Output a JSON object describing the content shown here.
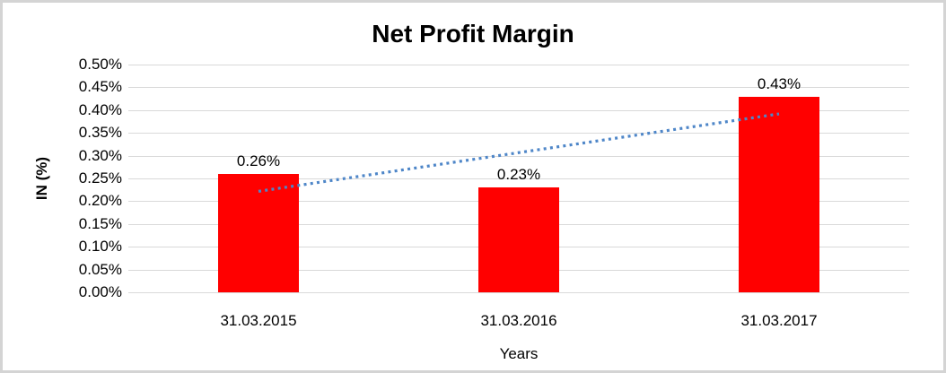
{
  "chart_data": {
    "type": "bar",
    "title": "Net Profit Margin",
    "xlabel": "Years",
    "ylabel": "IN (%)",
    "categories": [
      "31.03.2015",
      "31.03.2016",
      "31.03.2017"
    ],
    "values": [
      0.26,
      0.23,
      0.43
    ],
    "data_labels": [
      "0.26%",
      "0.23%",
      "0.43%"
    ],
    "y_tick_labels": [
      "0.00%",
      "0.05%",
      "0.10%",
      "0.15%",
      "0.20%",
      "0.25%",
      "0.30%",
      "0.35%",
      "0.40%",
      "0.45%",
      "0.50%"
    ],
    "ylim": [
      0,
      0.5
    ],
    "y_tick_step": 0.05,
    "grid": true,
    "legend": "none",
    "bar_color": "#ff0000",
    "gridline_color": "#d9d9d9",
    "frame_color": "#d4d4d4",
    "text_color": "#000000",
    "trendline": {
      "type": "linear",
      "style": "dotted",
      "color": "#4e86c8",
      "endpoint_values": [
        0.2217,
        0.3917
      ]
    }
  }
}
